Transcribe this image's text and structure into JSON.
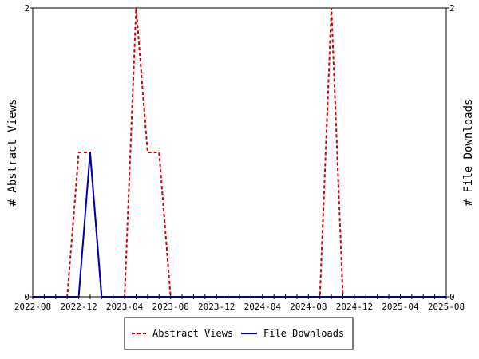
{
  "chart_data": {
    "type": "line",
    "x_ticks": [
      "2022-08",
      "2022-12",
      "2023-04",
      "2023-08",
      "2023-12",
      "2024-04",
      "2024-08",
      "2024-12",
      "2025-04",
      "2025-08"
    ],
    "x_range": [
      "2022-08",
      "2025-08"
    ],
    "y_left": {
      "label": "# Abstract Views",
      "ticks": [
        "0",
        "2"
      ],
      "range": [
        0,
        2
      ]
    },
    "y_right": {
      "label": "# File Downloads",
      "ticks": [
        "0",
        "2"
      ],
      "range": [
        0,
        2
      ]
    },
    "series": [
      {
        "name": "Abstract Views",
        "axis": "left",
        "color": "#cc0000",
        "dash": "dashed",
        "points": [
          [
            "2022-08",
            0
          ],
          [
            "2022-11",
            0
          ],
          [
            "2022-12",
            1
          ],
          [
            "2023-01",
            1
          ],
          [
            "2023-02",
            0
          ],
          [
            "2023-04",
            0
          ],
          [
            "2023-05",
            2
          ],
          [
            "2023-06",
            1
          ],
          [
            "2023-07",
            1
          ],
          [
            "2023-08",
            0
          ],
          [
            "2024-09",
            0
          ],
          [
            "2024-10",
            2
          ],
          [
            "2024-11",
            0
          ],
          [
            "2025-08",
            0
          ]
        ]
      },
      {
        "name": "File Downloads",
        "axis": "right",
        "color": "#0000aa",
        "dash": "solid",
        "points": [
          [
            "2022-08",
            0
          ],
          [
            "2022-12",
            0
          ],
          [
            "2023-01",
            1
          ],
          [
            "2023-02",
            0
          ],
          [
            "2025-08",
            0
          ]
        ]
      }
    ],
    "legend_position": "bottom"
  }
}
